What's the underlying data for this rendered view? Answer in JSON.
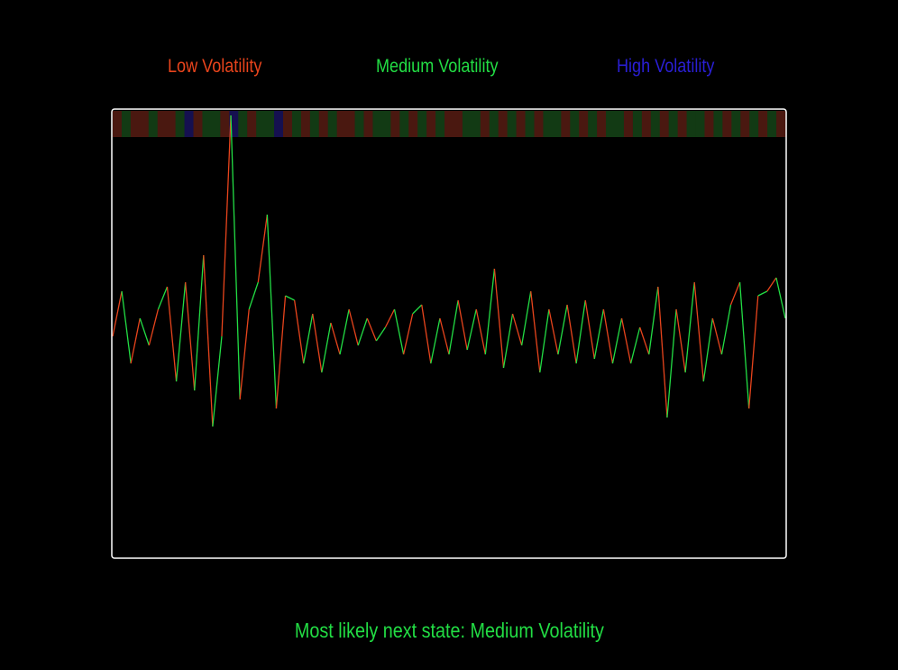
{
  "legend": {
    "low": "Low Volatility",
    "medium": "Medium Volatility",
    "high": "High Volatility"
  },
  "status": {
    "text": "Most likely next state: Medium Volatility"
  },
  "colors": {
    "background": "#000000",
    "low": "#e8441c",
    "medium": "#22dd44",
    "high": "#2a1fd6",
    "frame": "#ffffff",
    "band_low": "#4a1810",
    "band_medium": "#123a14",
    "band_high": "#151050"
  },
  "chart_data": {
    "type": "line",
    "title": "",
    "xlabel": "",
    "ylabel": "",
    "grid": false,
    "legend_position": "top",
    "ylim": [
      -2.5,
      2.5
    ],
    "series": [
      {
        "name": "Low Volatility",
        "color_key": "low"
      },
      {
        "name": "Medium Volatility",
        "color_key": "medium"
      }
    ],
    "state_codes": "0 = Low Volatility, 1 = Medium Volatility, 2 = High Volatility",
    "x": [
      0,
      10,
      20,
      30,
      40,
      50,
      60,
      70,
      80,
      90,
      100,
      110,
      120,
      130,
      140,
      150,
      160,
      170,
      180,
      190,
      200,
      210,
      220,
      230,
      240,
      250,
      260,
      270,
      280,
      290,
      300,
      310,
      320,
      330,
      340,
      350,
      360,
      370,
      380,
      390,
      400,
      410,
      420,
      430,
      440,
      450,
      460,
      470,
      480,
      490,
      500,
      510,
      520,
      530,
      540,
      550,
      560,
      570,
      580,
      590,
      600,
      610,
      620,
      630,
      640,
      650,
      660,
      670,
      680,
      690,
      700,
      710,
      720,
      730,
      740
    ],
    "values": [
      0.0,
      0.5,
      -0.3,
      0.2,
      -0.1,
      0.3,
      0.55,
      -0.5,
      0.6,
      -0.6,
      0.9,
      -1.0,
      0.0,
      2.45,
      -0.7,
      0.3,
      0.6,
      1.35,
      -0.8,
      0.45,
      0.4,
      -0.3,
      0.25,
      -0.4,
      0.15,
      -0.2,
      0.3,
      -0.1,
      0.2,
      -0.05,
      0.1,
      0.3,
      -0.2,
      0.25,
      0.35,
      -0.3,
      0.2,
      -0.2,
      0.4,
      -0.15,
      0.3,
      -0.2,
      0.75,
      -0.35,
      0.25,
      -0.1,
      0.5,
      -0.4,
      0.3,
      -0.2,
      0.35,
      -0.3,
      0.4,
      -0.25,
      0.3,
      -0.3,
      0.2,
      -0.3,
      0.1,
      -0.2,
      0.55,
      -0.9,
      0.3,
      -0.4,
      0.6,
      -0.5,
      0.2,
      -0.2,
      0.35,
      0.6,
      -0.8,
      0.45,
      0.5,
      0.65,
      0.2
    ],
    "states": [
      0,
      1,
      0,
      0,
      1,
      0,
      0,
      1,
      2,
      0,
      1,
      1,
      0,
      2,
      1,
      0,
      1,
      1,
      2,
      0,
      1,
      0,
      1,
      0,
      1,
      0,
      0,
      1,
      0,
      1,
      1,
      0,
      1,
      0,
      1,
      0,
      1,
      0,
      0,
      1,
      1,
      0,
      1,
      0,
      1,
      0,
      1,
      0,
      1,
      1,
      0,
      1,
      0,
      1,
      0,
      1,
      1,
      0,
      1,
      0,
      1,
      0,
      1,
      0,
      1,
      1,
      0,
      1,
      0,
      1,
      0,
      1,
      0,
      1,
      0
    ]
  }
}
